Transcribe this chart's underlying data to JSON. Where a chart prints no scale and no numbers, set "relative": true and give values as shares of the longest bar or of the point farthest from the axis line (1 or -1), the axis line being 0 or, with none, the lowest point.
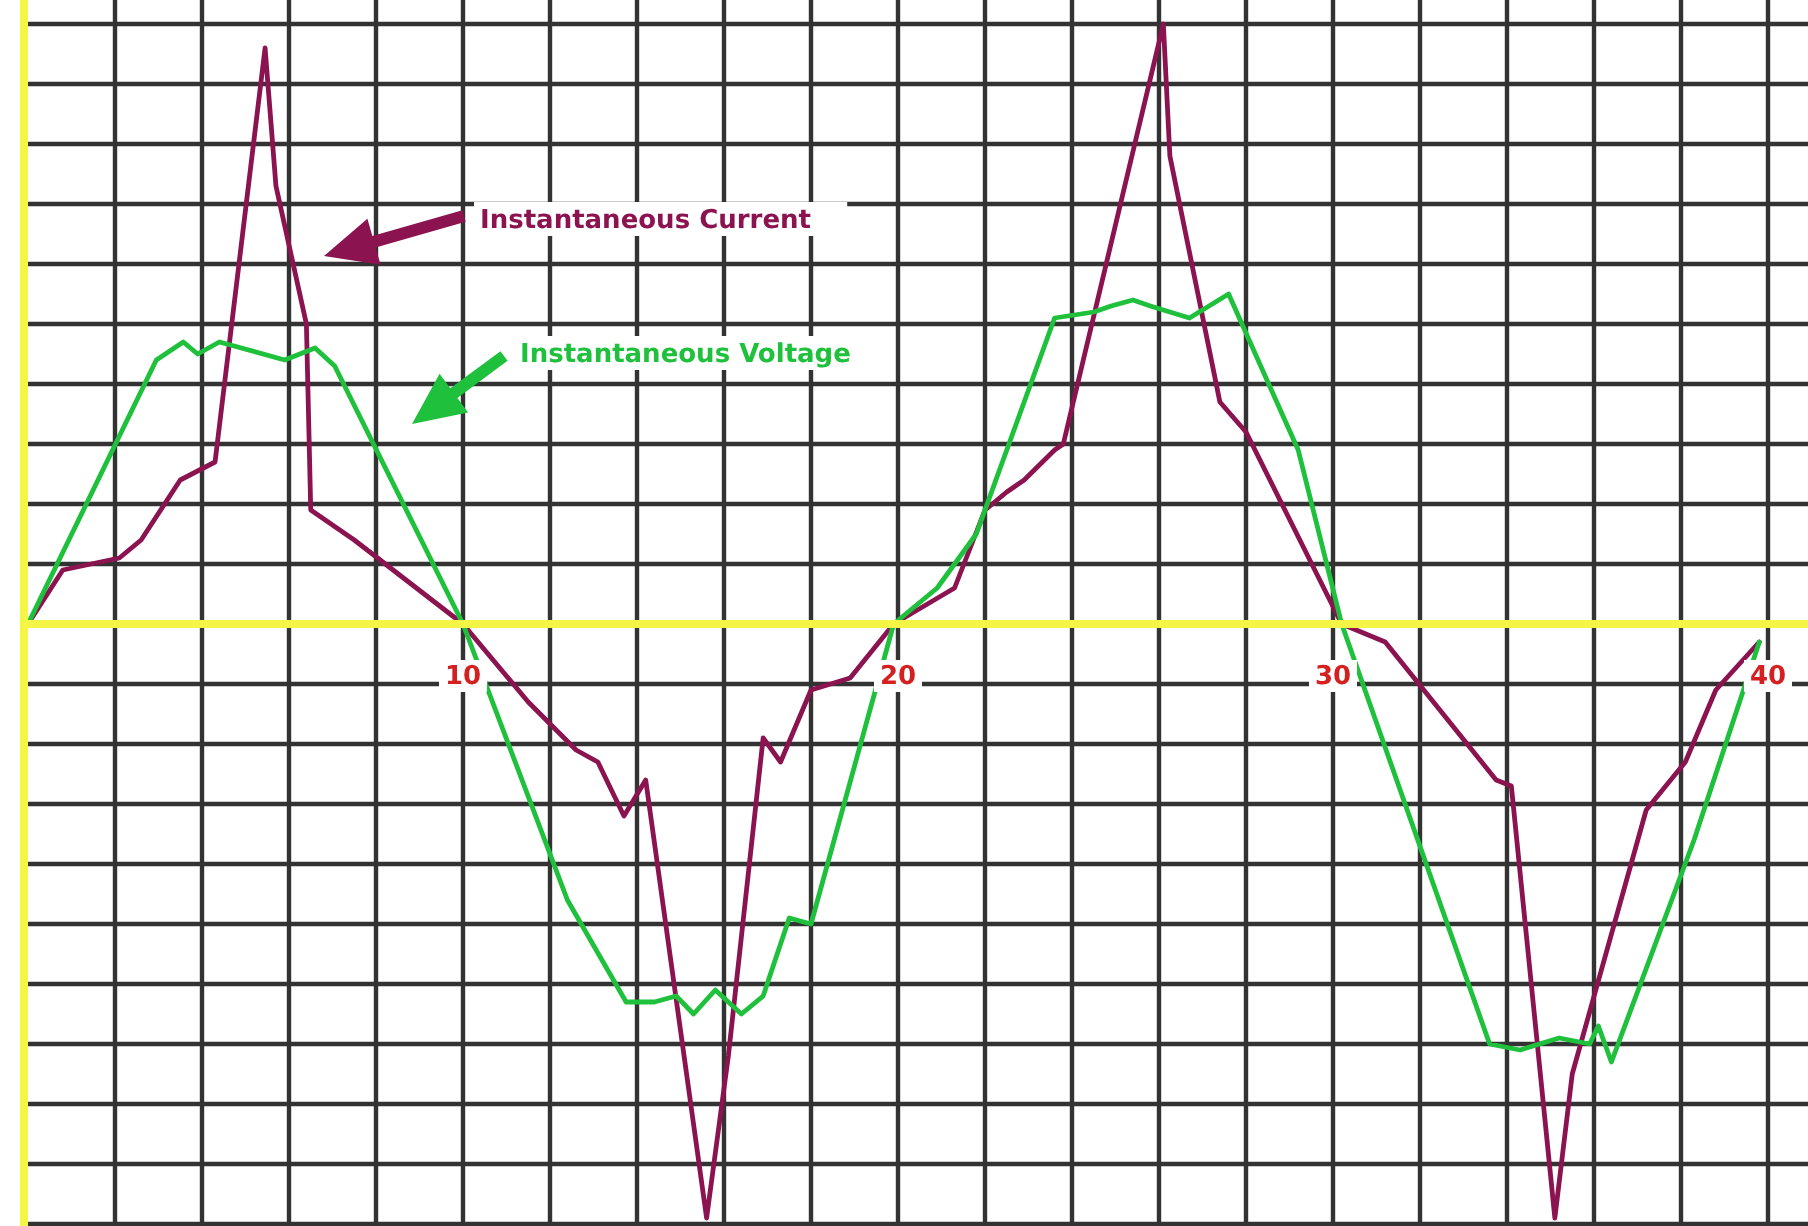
{
  "chart_data": {
    "type": "line",
    "relative": true,
    "xlim": [
      0,
      40
    ],
    "xticks": [
      {
        "value": 2,
        "label": null
      },
      {
        "value": 4,
        "label": null
      },
      {
        "value": 6,
        "label": null
      },
      {
        "value": 8,
        "label": null
      },
      10,
      {
        "value": 12,
        "label": null
      },
      {
        "value": 14,
        "label": null
      },
      {
        "value": 16,
        "label": null
      },
      {
        "value": 18,
        "label": null
      },
      20,
      {
        "value": 22,
        "label": null
      },
      {
        "value": 24,
        "label": null
      },
      {
        "value": 26,
        "label": null
      },
      {
        "value": 28,
        "label": null
      },
      30,
      {
        "value": 32,
        "label": null
      },
      {
        "value": 34,
        "label": null
      },
      {
        "value": 36,
        "label": null
      },
      {
        "value": 38,
        "label": null
      },
      40
    ],
    "grid": true,
    "legend": "top",
    "marker": "none",
    "line_style": "solid",
    "series": [
      {
        "name": "Instantaneous Current",
        "color": "#8b1450",
        "x": [
          0,
          0.8,
          2.1,
          2.6,
          3.5,
          4.3,
          5.45,
          5.7,
          6.4,
          6.5,
          7.5,
          10,
          11.5,
          12.6,
          13.1,
          13.7,
          14.2,
          15.6,
          16.1,
          16.9,
          17.3,
          18.0,
          18.9,
          19.9,
          21.3,
          22.0,
          22.5,
          22.9,
          23.6,
          23.8,
          26.1,
          26.25,
          27.4,
          28.0,
          30.2,
          31.2,
          33.75,
          34.1,
          35.1,
          35.5,
          37.2,
          38.1,
          38.8,
          39.8
        ],
        "values": [
          0,
          0.09,
          0.11,
          0.14,
          0.24,
          0.27,
          0.96,
          0.73,
          0.5,
          0.19,
          0.14,
          0,
          -0.13,
          -0.21,
          -0.23,
          -0.32,
          -0.26,
          -0.99,
          -0.72,
          -0.19,
          -0.23,
          -0.11,
          -0.09,
          0,
          0.06,
          0.19,
          0.22,
          0.24,
          0.29,
          0.3,
          1.0,
          0.78,
          0.37,
          0.32,
          0,
          -0.03,
          -0.26,
          -0.27,
          -0.99,
          -0.75,
          -0.31,
          -0.23,
          -0.11,
          -0.03
        ]
      },
      {
        "name": "Instantaneous Voltage",
        "color": "#1ec03c",
        "x": [
          0,
          2.95,
          3.57,
          3.9,
          4.4,
          5.9,
          6.6,
          7.05,
          10.0,
          12.4,
          13.75,
          14.4,
          14.9,
          15.3,
          15.8,
          16.4,
          16.9,
          17.5,
          18.0,
          19.9,
          20.9,
          21.8,
          23.6,
          24.5,
          24.9,
          25.4,
          25.8,
          26.7,
          27.6,
          29.2,
          30.2,
          33.6,
          34.3,
          35.2,
          35.9,
          36.1,
          36.4,
          38.3,
          39.8
        ],
        "values": [
          0,
          0.44,
          0.47,
          0.45,
          0.47,
          0.44,
          0.46,
          0.43,
          0,
          -0.46,
          -0.63,
          -0.63,
          -0.62,
          -0.65,
          -0.61,
          -0.65,
          -0.62,
          -0.49,
          -0.5,
          0,
          0.06,
          0.15,
          0.51,
          0.52,
          0.53,
          0.54,
          0.53,
          0.51,
          0.55,
          0.29,
          0,
          -0.7,
          -0.71,
          -0.69,
          -0.7,
          -0.67,
          -0.73,
          -0.36,
          -0.03
        ]
      }
    ]
  }
}
